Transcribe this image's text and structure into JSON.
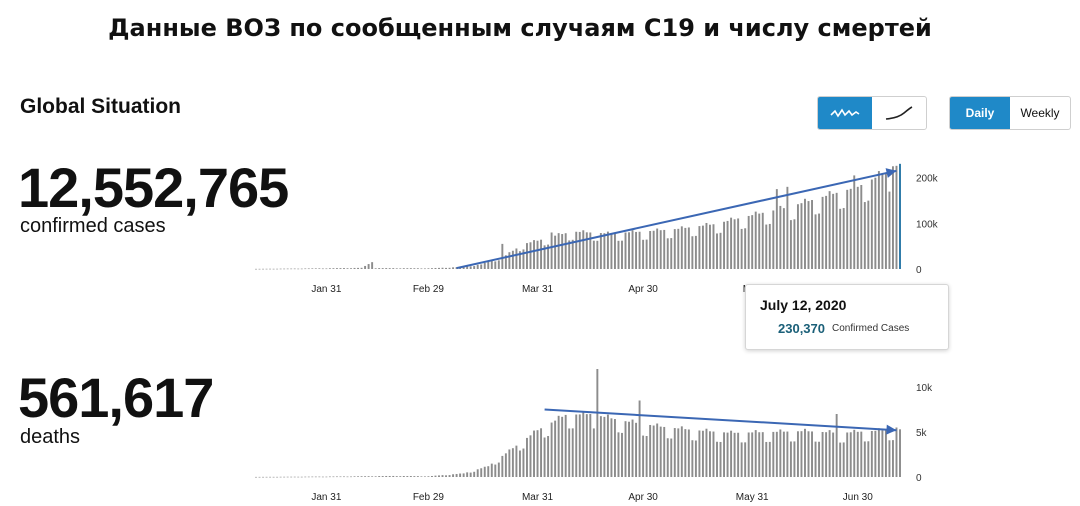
{
  "heading": "Данные ВОЗ по сообщенным случаям С19 и числу смертей",
  "section_title": "Global Situation",
  "confirmed": {
    "total": "12,552,765",
    "label": "confirmed cases"
  },
  "deaths": {
    "total": "561,617",
    "label": "deaths"
  },
  "chart_toggle": {
    "items": [
      "daily-chart-icon",
      "cumulative-chart-icon"
    ],
    "active": 0
  },
  "period_toggle": {
    "items": [
      "Daily",
      "Weekly"
    ],
    "active": 0
  },
  "tooltip": {
    "date": "July 12, 2020",
    "value": "230,370",
    "label": "Confirmed Cases"
  },
  "colors": {
    "bar": "#8c8c8c",
    "trend": "#3b67b4",
    "highlight": "#2a78a8",
    "accent": "#1f89c8"
  },
  "chart_data": [
    {
      "type": "bar",
      "title": "",
      "xlabel": "",
      "ylabel": "",
      "x_range": [
        "2020-01-11",
        "2020-07-12"
      ],
      "ylim": [
        0,
        230000
      ],
      "y_ticks": [
        0,
        100000,
        200000
      ],
      "y_tick_labels": [
        "0",
        "100k",
        "200k"
      ],
      "x_ticks": [
        "2020-01-31",
        "2020-02-29",
        "2020-03-31",
        "2020-04-30",
        "2020-05-31"
      ],
      "x_tick_labels": [
        "Jan 31",
        "Feb 29",
        "Mar 31",
        "Apr 30",
        "May"
      ],
      "highlight_date": "2020-07-12",
      "trend_line": {
        "start": [
          "2020-03-08",
          2000
        ],
        "end": [
          "2020-07-11",
          215000
        ]
      },
      "anchors": [
        [
          "2020-01-11",
          300
        ],
        [
          "2020-01-31",
          1500
        ],
        [
          "2020-02-10",
          2500
        ],
        [
          "2020-02-13",
          15000
        ],
        [
          "2020-02-14",
          2000
        ],
        [
          "2020-02-29",
          1500
        ],
        [
          "2020-03-08",
          4000
        ],
        [
          "2020-03-15",
          10000
        ],
        [
          "2020-03-22",
          30000
        ],
        [
          "2020-03-27",
          55000
        ],
        [
          "2020-03-31",
          62000
        ],
        [
          "2020-04-05",
          73000
        ],
        [
          "2020-04-10",
          82000
        ],
        [
          "2020-04-20",
          78000
        ],
        [
          "2020-04-30",
          82000
        ],
        [
          "2020-05-10",
          88000
        ],
        [
          "2020-05-20",
          98000
        ],
        [
          "2020-05-31",
          118000
        ],
        [
          "2020-06-10",
          135000
        ],
        [
          "2020-06-20",
          158000
        ],
        [
          "2020-06-30",
          180000
        ],
        [
          "2020-07-05",
          200000
        ],
        [
          "2020-07-12",
          230370
        ]
      ],
      "spikes": [
        [
          "2020-02-13",
          15000
        ],
        [
          "2020-03-21",
          55000
        ],
        [
          "2020-04-04",
          80000
        ],
        [
          "2020-06-07",
          175000
        ],
        [
          "2020-06-10",
          180000
        ],
        [
          "2020-06-29",
          205000
        ],
        [
          "2020-07-08",
          210000
        ],
        [
          "2020-07-10",
          225000
        ]
      ]
    },
    {
      "type": "bar",
      "title": "",
      "xlabel": "",
      "ylabel": "",
      "x_range": [
        "2020-01-11",
        "2020-07-12"
      ],
      "ylim": [
        0,
        10000
      ],
      "y_ticks": [
        0,
        5000,
        10000
      ],
      "y_tick_labels": [
        "0",
        "5k",
        "10k"
      ],
      "x_ticks": [
        "2020-01-31",
        "2020-02-29",
        "2020-03-31",
        "2020-04-30",
        "2020-05-31",
        "2020-06-30"
      ],
      "x_tick_labels": [
        "Jan 31",
        "Feb 29",
        "Mar 31",
        "Apr 30",
        "May 31",
        "Jun 30"
      ],
      "trend_line": {
        "start": [
          "2020-04-02",
          7500
        ],
        "end": [
          "2020-07-11",
          5200
        ]
      },
      "anchors": [
        [
          "2020-01-11",
          10
        ],
        [
          "2020-02-05",
          60
        ],
        [
          "2020-02-20",
          120
        ],
        [
          "2020-02-29",
          80
        ],
        [
          "2020-03-10",
          400
        ],
        [
          "2020-03-17",
          1200
        ],
        [
          "2020-03-24",
          3200
        ],
        [
          "2020-03-31",
          5200
        ],
        [
          "2020-04-08",
          6900
        ],
        [
          "2020-04-15",
          7000
        ],
        [
          "2020-04-25",
          6200
        ],
        [
          "2020-05-05",
          5600
        ],
        [
          "2020-05-15",
          5200
        ],
        [
          "2020-05-25",
          4900
        ],
        [
          "2020-06-05",
          5000
        ],
        [
          "2020-06-15",
          5100
        ],
        [
          "2020-06-25",
          4900
        ],
        [
          "2020-07-12",
          5300
        ]
      ],
      "spikes": [
        [
          "2020-04-17",
          12000
        ],
        [
          "2020-04-29",
          8500
        ],
        [
          "2020-06-24",
          7000
        ],
        [
          "2020-07-11",
          5500
        ]
      ]
    }
  ]
}
